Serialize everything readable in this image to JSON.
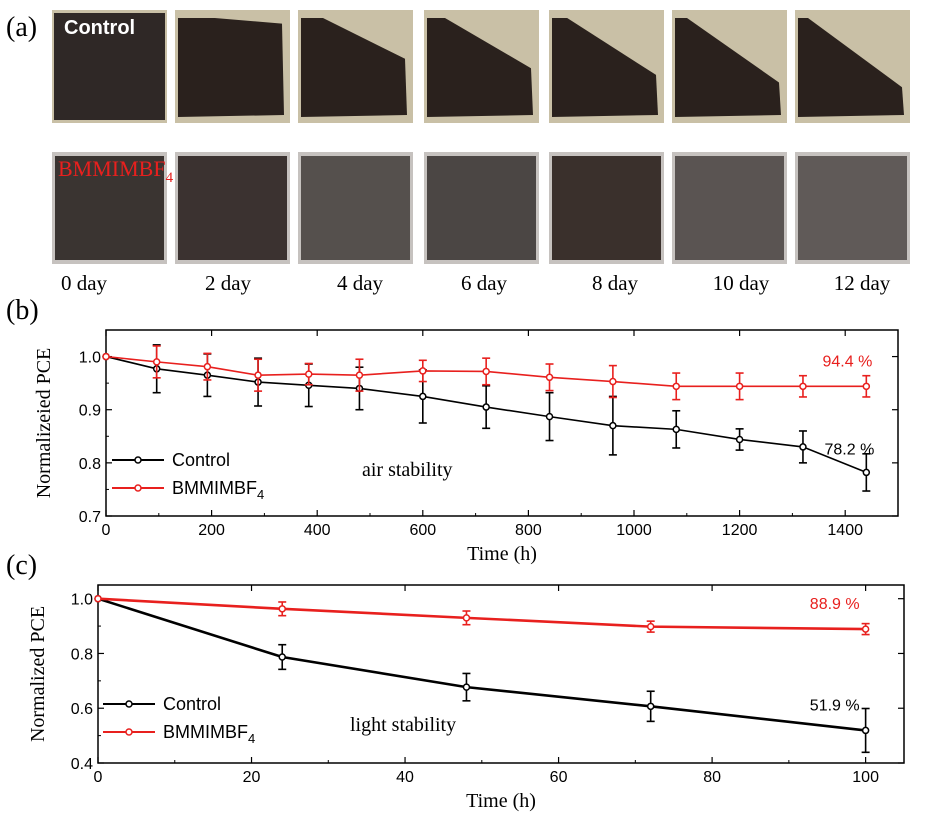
{
  "panels": {
    "a": "(a)",
    "b": "(b)",
    "c": "(c)"
  },
  "photos": {
    "row_labels": {
      "control": "Control",
      "bmmimbf4_main": "BMMIMBF",
      "bmmimbf4_sub": "4"
    },
    "day_labels": [
      "0 day",
      "2 day",
      "4 day",
      "6 day",
      "8 day",
      "10 day",
      "12 day"
    ],
    "control_degradation": [
      0.0,
      0.08,
      0.45,
      0.55,
      0.62,
      0.7,
      0.75
    ],
    "bmmimbf4_shade": [
      "#3a3431",
      "#3b3230",
      "#55504d",
      "#4b4644",
      "#3a302c",
      "#5a5452",
      "#605a58"
    ]
  },
  "colors": {
    "control": "#000000",
    "bmmimbf4": "#e8201e"
  },
  "chart_data": [
    {
      "type": "line",
      "annotation": "air stability",
      "xlabel": "Time (h)",
      "ylabel": "Normalizeied PCE",
      "xlim": [
        0,
        1500
      ],
      "ylim": [
        0.7,
        1.05
      ],
      "xticks": [
        0,
        200,
        400,
        600,
        800,
        1000,
        1200,
        1400
      ],
      "xtick_labels": [
        "0",
        "200",
        "400",
        "600",
        "800",
        "1000",
        "1200",
        "1400"
      ],
      "yticks": [
        0.7,
        0.8,
        0.9,
        1.0
      ],
      "ytick_labels": [
        "0.7",
        "0.8",
        "0.9",
        "1.0"
      ],
      "legend": "left",
      "series": [
        {
          "name": "Control",
          "name_sub": "",
          "color": "#000000",
          "x": [
            0,
            96,
            192,
            288,
            384,
            480,
            600,
            720,
            840,
            960,
            1080,
            1200,
            1320,
            1440
          ],
          "y": [
            1.0,
            0.977,
            0.965,
            0.952,
            0.946,
            0.94,
            0.925,
            0.905,
            0.887,
            0.87,
            0.863,
            0.844,
            0.83,
            0.782
          ],
          "err": [
            0,
            0.045,
            0.04,
            0.045,
            0.04,
            0.04,
            0.05,
            0.04,
            0.045,
            0.055,
            0.035,
            0.02,
            0.03,
            0.035
          ],
          "end_label": "78.2 %"
        },
        {
          "name": "BMMIMBF",
          "name_sub": "4",
          "color": "#e8201e",
          "x": [
            0,
            96,
            192,
            288,
            384,
            480,
            600,
            720,
            840,
            960,
            1080,
            1200,
            1320,
            1440
          ],
          "y": [
            1.0,
            0.99,
            0.981,
            0.965,
            0.967,
            0.965,
            0.973,
            0.972,
            0.961,
            0.953,
            0.944,
            0.944,
            0.944,
            0.944
          ],
          "err": [
            0,
            0.03,
            0.025,
            0.03,
            0.02,
            0.03,
            0.02,
            0.025,
            0.025,
            0.03,
            0.025,
            0.025,
            0.02,
            0.02
          ],
          "end_label": "94.4 %"
        }
      ]
    },
    {
      "type": "line",
      "annotation": "light stability",
      "xlabel": "Time (h)",
      "ylabel": "Normalized PCE",
      "xlim": [
        0,
        105
      ],
      "ylim": [
        0.4,
        1.05
      ],
      "xticks": [
        0,
        20,
        40,
        60,
        80,
        100
      ],
      "xtick_labels": [
        "0",
        "20",
        "40",
        "60",
        "80",
        "100"
      ],
      "yticks": [
        0.4,
        0.6,
        0.8,
        1.0
      ],
      "ytick_labels": [
        "0.4",
        "0.6",
        "0.8",
        "1.0"
      ],
      "legend": "left",
      "series": [
        {
          "name": "Control",
          "name_sub": "",
          "color": "#000000",
          "x": [
            0,
            24,
            48,
            72,
            100
          ],
          "y": [
            1.0,
            0.787,
            0.677,
            0.607,
            0.519
          ],
          "err": [
            0,
            0.045,
            0.05,
            0.055,
            0.08
          ],
          "end_label": "51.9 %"
        },
        {
          "name": "BMMIMBF",
          "name_sub": "4",
          "color": "#e8201e",
          "x": [
            0,
            24,
            48,
            72,
            100
          ],
          "y": [
            1.0,
            0.963,
            0.93,
            0.898,
            0.889
          ],
          "err": [
            0,
            0.025,
            0.025,
            0.02,
            0.02
          ],
          "end_label": "88.9 %"
        }
      ]
    }
  ]
}
